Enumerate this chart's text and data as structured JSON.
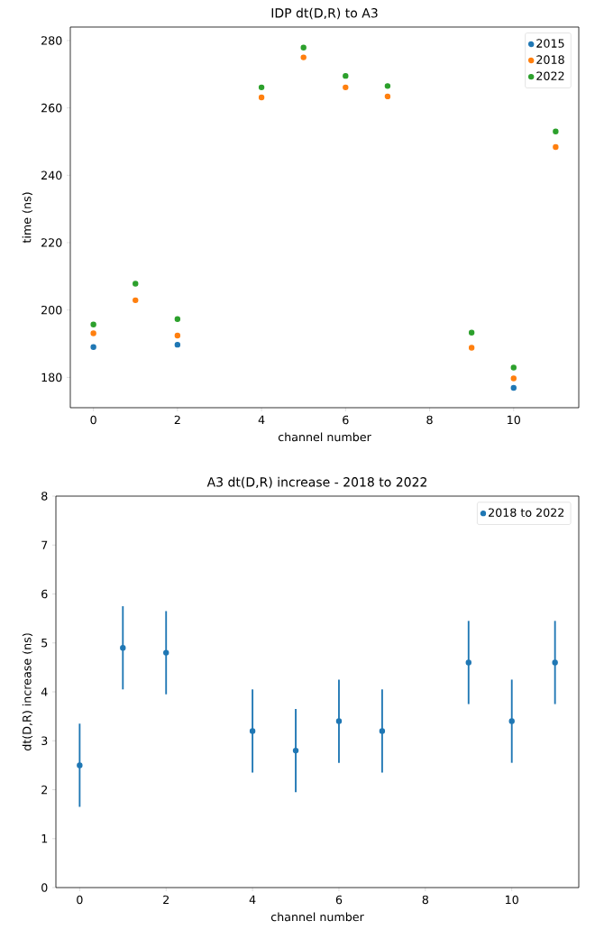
{
  "chart_data": [
    {
      "type": "scatter",
      "title": "IDP dt(D,R) to A3",
      "xlabel": "channel number",
      "ylabel": "time (ns)",
      "x": [
        0,
        1,
        2,
        4,
        5,
        6,
        7,
        9,
        10,
        11
      ],
      "series": [
        {
          "name": "2015",
          "color": "#1f77b4",
          "values": [
            189.0,
            null,
            189.7,
            null,
            null,
            null,
            null,
            null,
            176.9,
            null
          ]
        },
        {
          "name": "2018",
          "color": "#ff7f0e",
          "values": [
            193.1,
            202.9,
            192.4,
            263.1,
            275.0,
            266.1,
            263.4,
            188.8,
            179.7,
            248.4
          ]
        },
        {
          "name": "2022",
          "color": "#2ca02c",
          "values": [
            195.7,
            207.8,
            197.3,
            266.1,
            277.9,
            269.5,
            266.5,
            193.3,
            182.9,
            253.0
          ]
        }
      ],
      "xlim": [
        -0.55,
        11.55
      ],
      "ylim": [
        171,
        284
      ],
      "xticks": [
        0,
        2,
        4,
        6,
        8,
        10
      ],
      "yticks": [
        180,
        200,
        220,
        240,
        260,
        280
      ],
      "legend": "top right"
    },
    {
      "type": "scatter",
      "title": "A3 dt(D,R) increase - 2018 to 2022",
      "xlabel": "channel number",
      "ylabel": "dt(D,R) increase (ns)",
      "x": [
        0,
        1,
        2,
        4,
        5,
        6,
        7,
        9,
        10,
        11
      ],
      "series": [
        {
          "name": "2018 to 2022",
          "color": "#1f77b4",
          "values": [
            2.5,
            4.9,
            4.8,
            3.2,
            2.8,
            3.4,
            3.2,
            4.6,
            3.4,
            4.6
          ],
          "errors": [
            0.85,
            0.85,
            0.85,
            0.85,
            0.85,
            0.85,
            0.85,
            0.85,
            0.85,
            0.85
          ]
        }
      ],
      "xlim": [
        -0.55,
        11.55
      ],
      "ylim": [
        0,
        8
      ],
      "xticks": [
        0,
        2,
        4,
        6,
        8,
        10
      ],
      "yticks": [
        0,
        1,
        2,
        3,
        4,
        5,
        6,
        7,
        8
      ],
      "legend": "top right"
    }
  ]
}
